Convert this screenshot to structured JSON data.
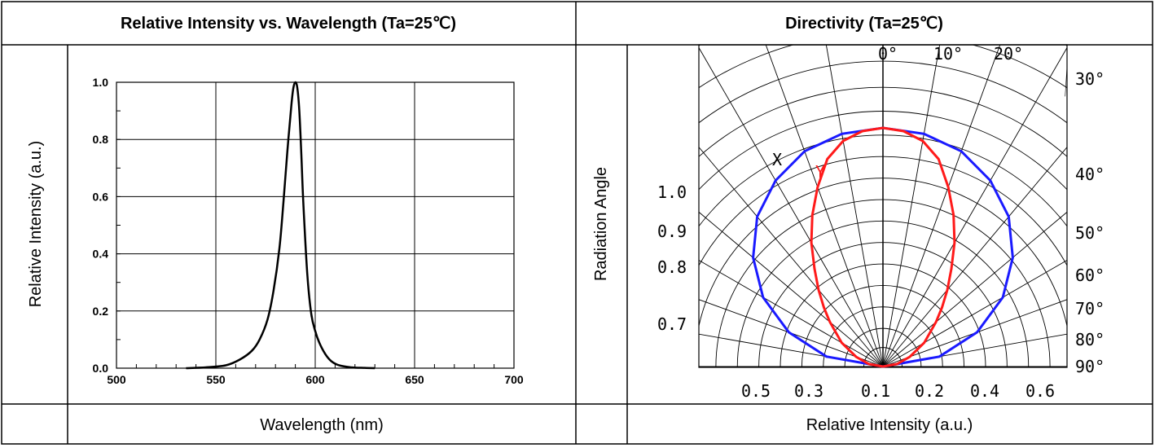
{
  "headers": {
    "left_title": "Relative Intensity vs. Wavelength (Ta=25℃)",
    "right_title": "Directivity (Ta=25℃)",
    "left_xlabel": "Wavelength (nm)",
    "right_xlabel": "Relative Intensity (a.u.)",
    "left_ylabel": "Relative Intensity (a.u.)",
    "right_ylabel": "Radiation Angle"
  },
  "chart_data": [
    {
      "type": "line",
      "title": "Relative Intensity vs. Wavelength (Ta=25℃)",
      "xlabel": "Wavelength (nm)",
      "ylabel": "Relative Intensity (a.u.)",
      "xlim": [
        500,
        700
      ],
      "ylim": [
        0,
        1.0
      ],
      "x_ticks": [
        "500",
        "550",
        "600",
        "650",
        "700"
      ],
      "y_ticks": [
        "0.0",
        "0.2",
        "0.4",
        "0.6",
        "0.8",
        "1.0"
      ],
      "grid": true,
      "series": [
        {
          "color": "#000000",
          "x": [
            535,
            545,
            555,
            562,
            568,
            572,
            576,
            579,
            582,
            584,
            586,
            588,
            589,
            590,
            591,
            592,
            593,
            594,
            596,
            598,
            600,
            602,
            605,
            608,
            612,
            618,
            625,
            630
          ],
          "y": [
            0.0,
            0.003,
            0.01,
            0.03,
            0.06,
            0.1,
            0.17,
            0.27,
            0.42,
            0.58,
            0.76,
            0.92,
            0.98,
            1.0,
            0.98,
            0.9,
            0.75,
            0.58,
            0.33,
            0.19,
            0.13,
            0.09,
            0.05,
            0.025,
            0.01,
            0.003,
            0.001,
            0.0
          ]
        }
      ]
    },
    {
      "type": "polar",
      "title": "Directivity (Ta=25℃)",
      "xlabel": "Relative Intensity (a.u.)",
      "ylabel": "Radiation Angle",
      "angle_labels": [
        "0°",
        "10°",
        "20°",
        "30°",
        "40°",
        "50°",
        "60°",
        "70°",
        "80°",
        "90°"
      ],
      "cos_labels": [
        "1.0",
        "0.9",
        "0.8",
        "0.7"
      ],
      "bottom_labels": [
        "0.5",
        "0.3",
        "0.1",
        "0.2",
        "0.4",
        "0.6"
      ],
      "series": [
        {
          "name": "X",
          "color": "#1a1aff",
          "angles": [
            0,
            10,
            20,
            30,
            40,
            50,
            60,
            70,
            80,
            90
          ],
          "values": [
            1.0,
            0.99,
            0.96,
            0.9,
            0.82,
            0.71,
            0.58,
            0.42,
            0.24,
            0.0
          ]
        },
        {
          "name": "Y",
          "color": "#ff1a1a",
          "angles": [
            0,
            5,
            10,
            15,
            20,
            25,
            30,
            35,
            40,
            45,
            50,
            60,
            70,
            80,
            90
          ],
          "values": [
            1.0,
            0.99,
            0.96,
            0.9,
            0.8,
            0.7,
            0.6,
            0.5,
            0.42,
            0.35,
            0.29,
            0.2,
            0.12,
            0.06,
            0.0
          ]
        }
      ]
    }
  ]
}
